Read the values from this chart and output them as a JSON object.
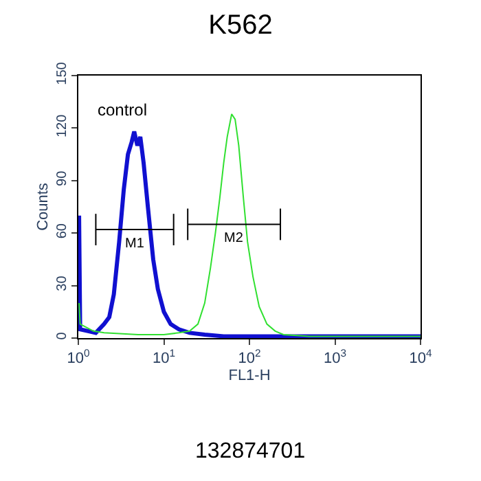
{
  "chart_data": {
    "type": "line",
    "title": "K562",
    "xlabel": "FL1-H",
    "ylabel": "Counts",
    "log": "x",
    "xlim": [
      1,
      10000
    ],
    "ylim": [
      0,
      150
    ],
    "xticks": [
      {
        "value": 1,
        "label": "10$^{0}$"
      },
      {
        "value": 10,
        "label": "10$^{1}$"
      },
      {
        "value": 100,
        "label": "10$^{2}$"
      },
      {
        "value": 1000,
        "label": "10$^{3}$"
      },
      {
        "value": 10000,
        "label": "10$^{4}$"
      }
    ],
    "yticks": [
      0,
      30,
      60,
      90,
      120,
      150
    ],
    "marker": "none",
    "series": [
      {
        "color": "#1010d0",
        "x": [
          1.02,
          1.05,
          1.3,
          1.6,
          2.0,
          2.3,
          2.6,
          3.0,
          3.4,
          3.8,
          4.2,
          4.5,
          4.9,
          5.3,
          5.8,
          6.5,
          7.5,
          8.5,
          10,
          12,
          15,
          20,
          30,
          50,
          100,
          1000,
          10000
        ],
        "values": [
          70,
          5,
          4,
          3,
          8,
          12,
          25,
          55,
          85,
          105,
          112,
          118,
          110,
          115,
          100,
          75,
          45,
          28,
          15,
          8,
          5,
          3,
          2,
          1,
          1,
          1,
          1
        ]
      },
      {
        "color": "#30e030",
        "x": [
          1.02,
          1.05,
          1.5,
          2,
          5,
          10,
          15,
          20,
          25,
          30,
          35,
          40,
          45,
          50,
          55,
          62,
          68,
          75,
          85,
          95,
          110,
          130,
          160,
          200,
          250,
          500,
          1000,
          10000
        ],
        "values": [
          20,
          8,
          4,
          3,
          2,
          2,
          3,
          4,
          8,
          20,
          40,
          60,
          80,
          100,
          115,
          128,
          125,
          110,
          80,
          55,
          35,
          18,
          8,
          4,
          2,
          1,
          1,
          1
        ]
      },
      {
        "name": "M1",
        "color": "#000000",
        "x": [
          1.6,
          13
        ],
        "values": [
          62,
          62
        ],
        "errors": [
          9,
          9
        ]
      },
      {
        "name": "M2",
        "color": "#000000",
        "x": [
          19,
          230
        ],
        "values": [
          65,
          65
        ],
        "errors": [
          9,
          9
        ]
      }
    ],
    "annotations": [
      "control",
      "132874701"
    ]
  }
}
